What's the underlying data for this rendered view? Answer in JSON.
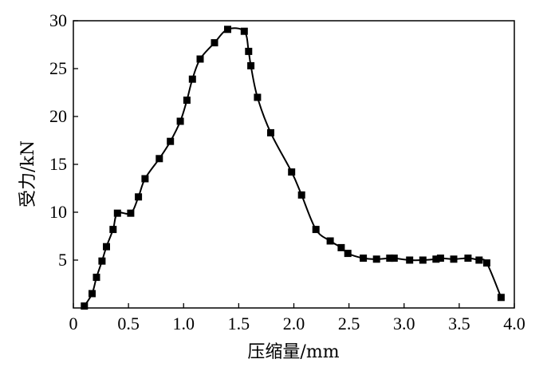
{
  "chart_data": {
    "type": "line",
    "title": "",
    "xlabel": "压缩量/mm",
    "ylabel": "受力/kN",
    "xlim": [
      0,
      4.0
    ],
    "ylim": [
      0,
      30
    ],
    "grid": false,
    "x_ticks": [
      {
        "value": 0,
        "label": "0"
      },
      {
        "value": 0.5,
        "label": "0.5"
      },
      {
        "value": 1.0,
        "label": "1.0"
      },
      {
        "value": 1.5,
        "label": "1.5"
      },
      {
        "value": 2.0,
        "label": "2.0"
      },
      {
        "value": 2.5,
        "label": "2.5"
      },
      {
        "value": 3.0,
        "label": "3.0"
      },
      {
        "value": 3.5,
        "label": "3.5"
      },
      {
        "value": 4.0,
        "label": "4.0"
      }
    ],
    "y_ticks": [
      {
        "value": 5,
        "label": "5"
      },
      {
        "value": 10,
        "label": "10"
      },
      {
        "value": 15,
        "label": "15"
      },
      {
        "value": 20,
        "label": "20"
      },
      {
        "value": 25,
        "label": "25"
      },
      {
        "value": 30,
        "label": "30"
      }
    ],
    "series": [
      {
        "marker": "square",
        "color": "#000000",
        "points": [
          [
            0.1,
            0.2
          ],
          [
            0.17,
            1.5
          ],
          [
            0.21,
            3.2
          ],
          [
            0.26,
            4.9
          ],
          [
            0.3,
            6.4
          ],
          [
            0.36,
            8.2
          ],
          [
            0.4,
            9.9
          ],
          [
            0.52,
            9.9
          ],
          [
            0.59,
            11.6
          ],
          [
            0.65,
            13.5
          ],
          [
            0.78,
            15.6
          ],
          [
            0.88,
            17.4
          ],
          [
            0.97,
            19.5
          ],
          [
            1.03,
            21.7
          ],
          [
            1.08,
            23.9
          ],
          [
            1.15,
            26.0
          ],
          [
            1.28,
            27.7
          ],
          [
            1.4,
            29.1
          ],
          [
            1.55,
            28.9
          ],
          [
            1.59,
            26.8
          ],
          [
            1.61,
            25.3
          ],
          [
            1.67,
            22.0
          ],
          [
            1.79,
            18.3
          ],
          [
            1.98,
            14.2
          ],
          [
            2.07,
            11.8
          ],
          [
            2.2,
            8.2
          ],
          [
            2.33,
            7.0
          ],
          [
            2.43,
            6.3
          ],
          [
            2.49,
            5.7
          ],
          [
            2.63,
            5.2
          ],
          [
            2.75,
            5.1
          ],
          [
            2.87,
            5.2
          ],
          [
            2.91,
            5.2
          ],
          [
            3.05,
            5.0
          ],
          [
            3.17,
            5.0
          ],
          [
            3.29,
            5.1
          ],
          [
            3.33,
            5.2
          ],
          [
            3.45,
            5.1
          ],
          [
            3.58,
            5.2
          ],
          [
            3.68,
            5.0
          ],
          [
            3.75,
            4.7
          ],
          [
            3.88,
            1.1
          ]
        ]
      }
    ]
  }
}
